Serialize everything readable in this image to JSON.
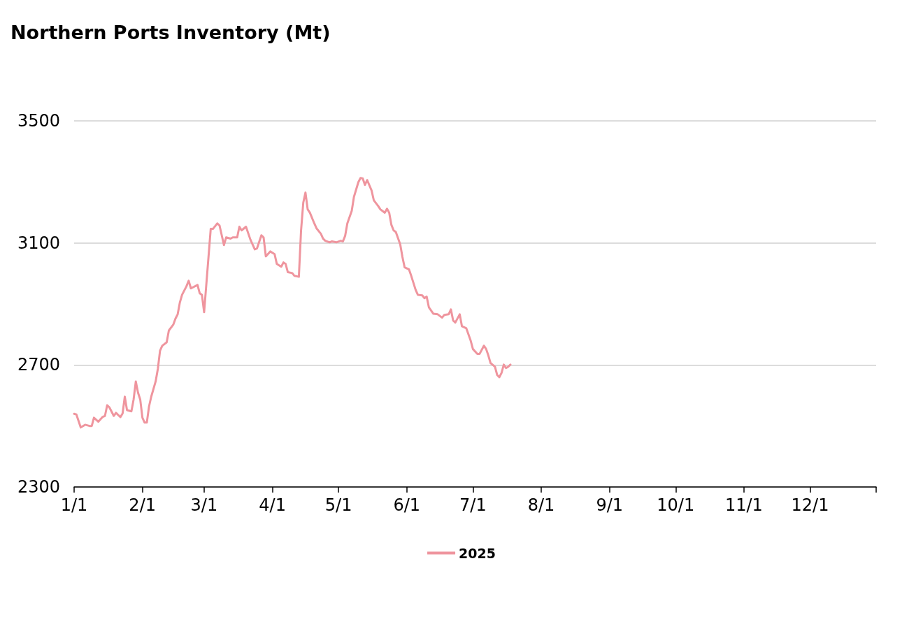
{
  "chart_data": {
    "type": "line",
    "title": "Northern Ports Inventory (Mt)",
    "x": [
      "--01-01",
      "--01-02",
      "--01-04",
      "--01-06",
      "--01-08",
      "--01-09",
      "--01-10",
      "--01-12",
      "--01-14",
      "--01-15",
      "--01-16",
      "--01-17",
      "--01-19",
      "--01-20",
      "--01-22",
      "--01-23",
      "--01-24",
      "--01-25",
      "--01-27",
      "--01-28",
      "--01-29",
      "--01-30",
      "--01-31",
      "--02-01",
      "--02-02",
      "--02-03",
      "--02-04",
      "--02-05",
      "--02-07",
      "--02-08",
      "--02-09",
      "--02-10",
      "--02-12",
      "--02-13",
      "--02-15",
      "--02-16",
      "--02-17",
      "--02-18",
      "--02-19",
      "--02-21",
      "--02-22",
      "--02-23",
      "--02-26",
      "--02-27",
      "--02-28",
      "--03-01",
      "--03-04",
      "--03-05",
      "--03-07",
      "--03-08",
      "--03-10",
      "--03-11",
      "--03-13",
      "--03-14",
      "--03-16",
      "--03-17",
      "--03-18",
      "--03-20",
      "--03-22",
      "--03-24",
      "--03-25",
      "--03-27",
      "--03-28",
      "--03-29",
      "--03-31",
      "--04-02",
      "--04-03",
      "--04-05",
      "--04-06",
      "--04-07",
      "--04-08",
      "--04-10",
      "--04-11",
      "--04-13",
      "--04-14",
      "--04-15",
      "--04-16",
      "--04-17",
      "--04-18",
      "--04-20",
      "--04-21",
      "--04-23",
      "--04-24",
      "--04-25",
      "--04-27",
      "--04-28",
      "--04-30",
      "--05-02",
      "--05-03",
      "--05-04",
      "--05-05",
      "--05-07",
      "--05-08",
      "--05-10",
      "--05-11",
      "--05-12",
      "--05-13",
      "--05-14",
      "--05-16",
      "--05-17",
      "--05-19",
      "--05-20",
      "--05-22",
      "--05-23",
      "--05-24",
      "--05-25",
      "--05-26",
      "--05-27",
      "--05-29",
      "--05-30",
      "--05-31",
      "--06-02",
      "--06-03",
      "--06-05",
      "--06-06",
      "--06-08",
      "--06-09",
      "--06-10",
      "--06-11",
      "--06-13",
      "--06-15",
      "--06-17",
      "--06-18",
      "--06-20",
      "--06-21",
      "--06-22",
      "--06-23",
      "--06-25",
      "--06-26",
      "--06-28",
      "--06-30",
      "--07-01",
      "--07-03",
      "--07-04",
      "--07-06",
      "--07-07",
      "--07-08",
      "--07-09",
      "--07-11",
      "--07-12",
      "--07-13",
      "--07-14",
      "--07-15",
      "--07-16",
      "--07-17",
      "--07-18"
    ],
    "series": [
      {
        "name": "2025",
        "color": "#ef959e",
        "values": [
          2540,
          2538,
          2495,
          2504,
          2500,
          2500,
          2527,
          2514,
          2530,
          2533,
          2568,
          2561,
          2533,
          2543,
          2529,
          2541,
          2596,
          2552,
          2548,
          2587,
          2646,
          2609,
          2587,
          2527,
          2511,
          2511,
          2564,
          2596,
          2646,
          2687,
          2747,
          2763,
          2774,
          2813,
          2832,
          2852,
          2866,
          2905,
          2930,
          2958,
          2976,
          2951,
          2962,
          2935,
          2930,
          2873,
          3146,
          3146,
          3164,
          3157,
          3093,
          3118,
          3114,
          3118,
          3118,
          3153,
          3141,
          3153,
          3111,
          3079,
          3082,
          3125,
          3118,
          3056,
          3072,
          3063,
          3031,
          3022,
          3036,
          3031,
          3004,
          3001,
          2992,
          2989,
          3141,
          3232,
          3265,
          3210,
          3199,
          3164,
          3148,
          3130,
          3114,
          3107,
          3102,
          3105,
          3102,
          3107,
          3105,
          3123,
          3164,
          3205,
          3251,
          3299,
          3313,
          3311,
          3290,
          3306,
          3272,
          3240,
          3221,
          3210,
          3199,
          3212,
          3199,
          3159,
          3141,
          3136,
          3095,
          3054,
          3020,
          3013,
          2992,
          2946,
          2930,
          2928,
          2919,
          2924,
          2889,
          2868,
          2866,
          2855,
          2864,
          2866,
          2882,
          2846,
          2839,
          2866,
          2827,
          2820,
          2779,
          2752,
          2736,
          2736,
          2763,
          2752,
          2731,
          2706,
          2694,
          2667,
          2660,
          2674,
          2701,
          2690,
          2694,
          2701
        ]
      }
    ],
    "xlim": [
      "--01-01",
      "--12-31"
    ],
    "xticks": [
      {
        "value": "--01-01",
        "label": "1/1"
      },
      {
        "value": "--02-01",
        "label": "2/1"
      },
      {
        "value": "--03-01",
        "label": "3/1"
      },
      {
        "value": "--04-01",
        "label": "4/1"
      },
      {
        "value": "--05-01",
        "label": "5/1"
      },
      {
        "value": "--06-01",
        "label": "6/1"
      },
      {
        "value": "--07-01",
        "label": "7/1"
      },
      {
        "value": "--08-01",
        "label": "8/1"
      },
      {
        "value": "--09-01",
        "label": "9/1"
      },
      {
        "value": "--10-01",
        "label": "10/1"
      },
      {
        "value": "--11-01",
        "label": "11/1"
      },
      {
        "value": "--12-01",
        "label": "12/1"
      },
      {
        "value": "--12-31",
        "label": null
      }
    ],
    "ylim": [
      2300,
      3500
    ],
    "yticks": [
      2300,
      2700,
      3100,
      3500
    ],
    "grid": "y",
    "legend": "bottom",
    "marker": "none",
    "line_style": "solid"
  }
}
